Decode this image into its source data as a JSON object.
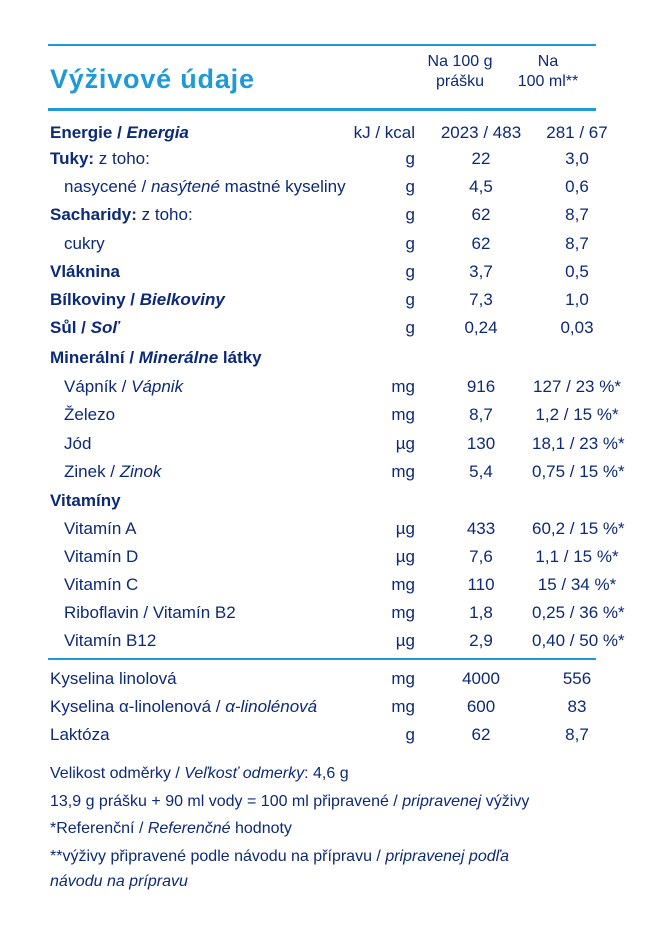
{
  "header": {
    "title": "Výživové údaje",
    "col1": [
      "Na 100 g",
      "prášku"
    ],
    "col2": [
      "Na",
      "100 ml**"
    ]
  },
  "colors": {
    "accent": "#1e9ad6",
    "text": "#0d2a78"
  },
  "rows": [
    {
      "a": "Energie / ",
      "b": "Energia",
      "c": "",
      "u": "kJ / kcal",
      "v1": "2023 / 483",
      "v2": "281 / 67"
    },
    {
      "a": "Tuky:",
      "b": "",
      "c": " z toho:",
      "u": "g",
      "v1": "22",
      "v2": "3,0"
    },
    {
      "a": "nasycené / ",
      "b": "nasýtené",
      "c": " mastné kyseliny",
      "u": "g",
      "v1": "4,5",
      "v2": "0,6"
    },
    {
      "a": "Sacharidy:",
      "b": "",
      "c": " z toho:",
      "u": "g",
      "v1": "62",
      "v2": "8,7"
    },
    {
      "a": "cukry",
      "b": "",
      "c": "",
      "u": "g",
      "v1": "62",
      "v2": "8,7"
    },
    {
      "a": "Vláknina",
      "b": "",
      "c": "",
      "u": "g",
      "v1": "3,7",
      "v2": "0,5"
    },
    {
      "a": "Bílkoviny / ",
      "b": "Bielkoviny",
      "c": "",
      "u": "g",
      "v1": "7,3",
      "v2": "1,0"
    },
    {
      "a": "Sůl / ",
      "b": "Soľ",
      "c": "",
      "u": "g",
      "v1": "0,24",
      "v2": "0,03"
    },
    {
      "a": "Minerální / ",
      "b": "Minerálne",
      "c": " látky",
      "u": "",
      "v1": "",
      "v2": ""
    },
    {
      "a": "Vápník / ",
      "b": "Vápnik",
      "c": "",
      "u": "mg",
      "v1": "916",
      "v2": "127 / 23 %*"
    },
    {
      "a": "Železo",
      "b": "",
      "c": "",
      "u": "mg",
      "v1": "8,7",
      "v2": "1,2 / 15 %*"
    },
    {
      "a": "Jód",
      "b": "",
      "c": "",
      "u": "µg",
      "v1": "130",
      "v2": "18,1 / 23 %*"
    },
    {
      "a": "Zinek / ",
      "b": "Zinok",
      "c": "",
      "u": "mg",
      "v1": "5,4",
      "v2": "0,75 / 15 %*"
    },
    {
      "a": "Vitamíny",
      "b": "",
      "c": "",
      "u": "",
      "v1": "",
      "v2": ""
    },
    {
      "a": "Vitamín A",
      "b": "",
      "c": "",
      "u": "µg",
      "v1": "433",
      "v2": "60,2 / 15 %*"
    },
    {
      "a": "Vitamín D",
      "b": "",
      "c": "",
      "u": "µg",
      "v1": "7,6",
      "v2": "1,1 / 15 %*"
    },
    {
      "a": "Vitamín C",
      "b": "",
      "c": "",
      "u": "mg",
      "v1": "110",
      "v2": "15 / 34 %*"
    },
    {
      "a": "Riboflavin / Vitamín B2",
      "b": "",
      "c": "",
      "u": "mg",
      "v1": "1,8",
      "v2": "0,25 / 36 %*"
    },
    {
      "a": "Vitamín B12",
      "b": "",
      "c": "",
      "u": "µg",
      "v1": "2,9",
      "v2": "0,40 / 50 %*"
    },
    {
      "a": "Kyselina linolová",
      "b": "",
      "c": "",
      "u": "mg",
      "v1": "4000",
      "v2": "556"
    },
    {
      "a": "Kyselina α-linolenová / ",
      "b": "α-linolénová",
      "c": "",
      "u": "mg",
      "v1": "600",
      "v2": "83"
    },
    {
      "a": "Laktóza",
      "b": "",
      "c": "",
      "u": "g",
      "v1": "62",
      "v2": "8,7"
    }
  ],
  "notes": [
    {
      "a": "Velikost odměrky / ",
      "b": "Veľkosť odmerky",
      "c": ": 4,6 g"
    },
    {
      "a": "13,9 g prášku + 90 ml vody = 100 ml připravené / ",
      "b": "pripravenej",
      "c": " výživy"
    },
    {
      "a": "*Referenční / ",
      "b": "Referenčné",
      "c": " hodnoty"
    },
    {
      "a": "**výživy připravené podle návodu na přípravu / ",
      "b": "pripravenej podľa",
      "c": ""
    },
    {
      "a": "",
      "b": "návodu na prípravu",
      "c": ""
    }
  ]
}
